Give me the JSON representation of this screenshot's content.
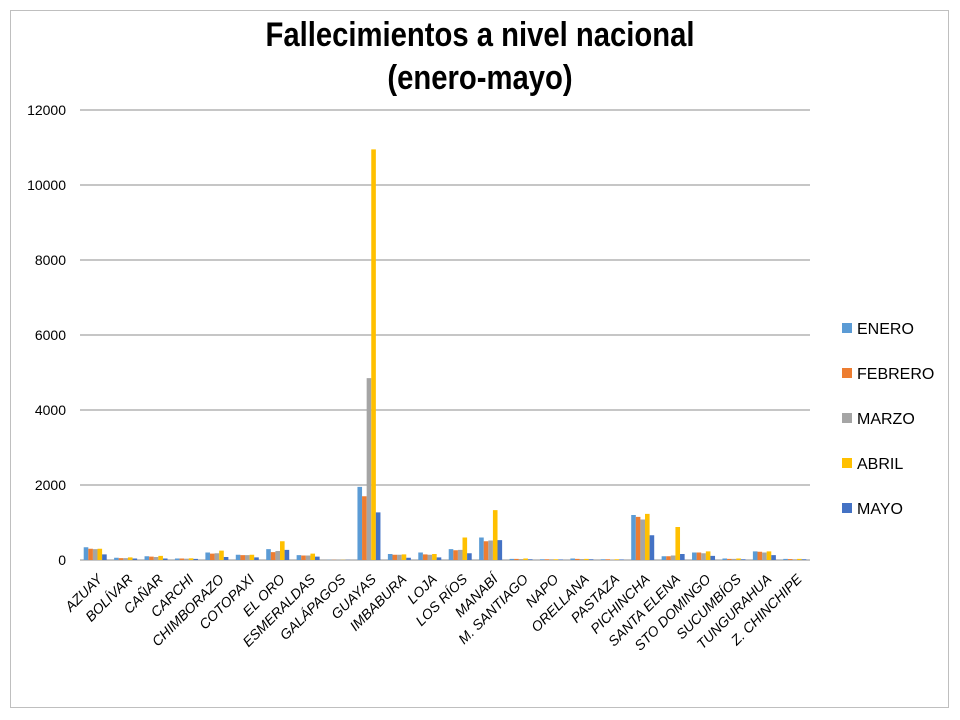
{
  "chart_data": {
    "type": "bar",
    "title_lines": [
      "Fallecimientos a nivel nacional",
      "(enero-mayo)"
    ],
    "xlabel": "",
    "ylabel": "",
    "ylim": [
      0,
      12000
    ],
    "yticks": [
      0,
      2000,
      4000,
      6000,
      8000,
      10000,
      12000
    ],
    "grid": true,
    "legend_position": "right",
    "categories": [
      "AZUAY",
      "BOLÍVAR",
      "CAÑAR",
      "CARCHI",
      "CHIMBORAZO",
      "COTOPAXI",
      "EL ORO",
      "ESMERALDAS",
      "GALÁPAGOS",
      "GUAYAS",
      "IMBABURA",
      "LOJA",
      "LOS RÍOS",
      "MANABÍ",
      "M. SANTIAGO",
      "NAPO",
      "ORELLANA",
      "PASTAZA",
      "PICHINCHA",
      "SANTA ELENA",
      "STO DOMINGO",
      "SUCUMBÍOS",
      "TUNGURAHUA",
      "Z. CHINCHIPE"
    ],
    "series": [
      {
        "name": "ENERO",
        "color": "#5b9bd5",
        "values": [
          340,
          60,
          100,
          40,
          200,
          140,
          290,
          130,
          5,
          1950,
          160,
          200,
          290,
          600,
          30,
          20,
          40,
          20,
          1200,
          100,
          200,
          40,
          230,
          30
        ]
      },
      {
        "name": "FEBRERO",
        "color": "#ed7d31",
        "values": [
          300,
          50,
          90,
          40,
          170,
          130,
          210,
          120,
          5,
          1700,
          140,
          150,
          260,
          500,
          30,
          20,
          30,
          20,
          1150,
          100,
          200,
          30,
          220,
          25
        ]
      },
      {
        "name": "MARZO",
        "color": "#a5a5a5",
        "values": [
          290,
          50,
          80,
          35,
          180,
          130,
          240,
          120,
          5,
          4850,
          140,
          140,
          270,
          520,
          25,
          20,
          25,
          15,
          1080,
          120,
          180,
          30,
          200,
          20
        ]
      },
      {
        "name": "ABRIL",
        "color": "#ffc000",
        "values": [
          300,
          70,
          110,
          45,
          250,
          140,
          500,
          170,
          5,
          10950,
          150,
          160,
          600,
          1330,
          40,
          20,
          30,
          20,
          1230,
          880,
          230,
          40,
          230,
          30
        ]
      },
      {
        "name": "MAYO",
        "color": "#4472c4",
        "values": [
          150,
          40,
          40,
          30,
          80,
          70,
          270,
          90,
          5,
          1270,
          60,
          70,
          180,
          530,
          20,
          15,
          20,
          15,
          660,
          160,
          110,
          20,
          130,
          20
        ]
      }
    ]
  }
}
